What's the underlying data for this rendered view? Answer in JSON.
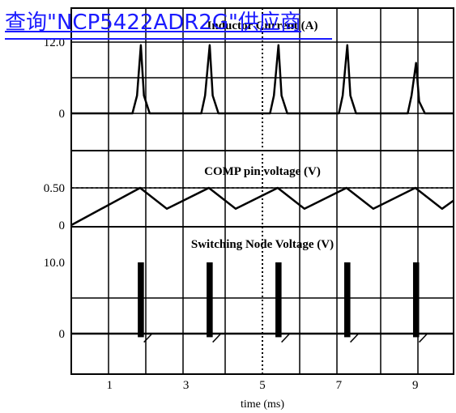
{
  "banner": {
    "text": "查询\"NCP5422ADR2G\"供应商"
  },
  "chart_data": [
    {
      "type": "line",
      "title": "Inductor Current (A)",
      "yticks": [
        {
          "value": 12.0,
          "label": "12.0"
        },
        {
          "value": 0,
          "label": "0"
        }
      ],
      "ylim": [
        -6,
        18
      ],
      "series": [
        {
          "x": [
            0,
            1.6,
            1.72,
            1.82,
            1.9,
            2.05,
            3.4,
            3.5,
            3.62,
            3.7,
            3.85,
            5.2,
            5.3,
            5.42,
            5.5,
            5.65,
            7.0,
            7.1,
            7.22,
            7.3,
            7.45,
            8.8,
            8.9,
            9.02,
            9.1,
            9.25,
            10
          ],
          "y": [
            0,
            0,
            3,
            11.5,
            3,
            0,
            0,
            3,
            11.5,
            3,
            0,
            0,
            3,
            11.5,
            3,
            0,
            0,
            3,
            11.5,
            3,
            0,
            0,
            3,
            8.5,
            2,
            0,
            0
          ]
        }
      ]
    },
    {
      "type": "line",
      "title": "COMP pin voltage (V)",
      "yticks": [
        {
          "value": 0.5,
          "label": "0.50"
        },
        {
          "value": 0,
          "label": "0"
        }
      ],
      "ylim": [
        -0.05,
        0.75
      ],
      "reference_line": 0.5,
      "series": [
        {
          "x": [
            0,
            1.8,
            2.5,
            3.6,
            4.3,
            5.4,
            6.1,
            7.2,
            7.9,
            9.0,
            9.7,
            10
          ],
          "y": [
            0,
            0.5,
            0.22,
            0.5,
            0.22,
            0.5,
            0.22,
            0.5,
            0.22,
            0.5,
            0.22,
            0.33
          ]
        }
      ]
    },
    {
      "type": "line",
      "title": "Switching Node Voltage (V)",
      "yticks": [
        {
          "value": 10.0,
          "label": "10.0"
        },
        {
          "value": 0,
          "label": "0"
        }
      ],
      "ylim": [
        -3,
        13
      ],
      "burst_high": 10.0,
      "burst_low": -0.5,
      "bursts": [
        {
          "start": 1.74,
          "end": 1.9
        },
        {
          "start": 3.54,
          "end": 3.7
        },
        {
          "start": 5.34,
          "end": 5.5
        },
        {
          "start": 7.14,
          "end": 7.3
        },
        {
          "start": 8.94,
          "end": 9.1
        }
      ]
    }
  ],
  "xaxis": {
    "label": "time (ms)",
    "xlim": [
      0,
      10
    ],
    "ticks": [
      {
        "value": 1,
        "label": "1"
      },
      {
        "value": 3,
        "label": "3"
      },
      {
        "value": 5,
        "label": "5"
      },
      {
        "value": 7,
        "label": "7"
      },
      {
        "value": 9,
        "label": "9"
      }
    ]
  },
  "colors": {
    "trace": "#000000",
    "banner": "#1a1aff",
    "background": "#ffffff"
  }
}
